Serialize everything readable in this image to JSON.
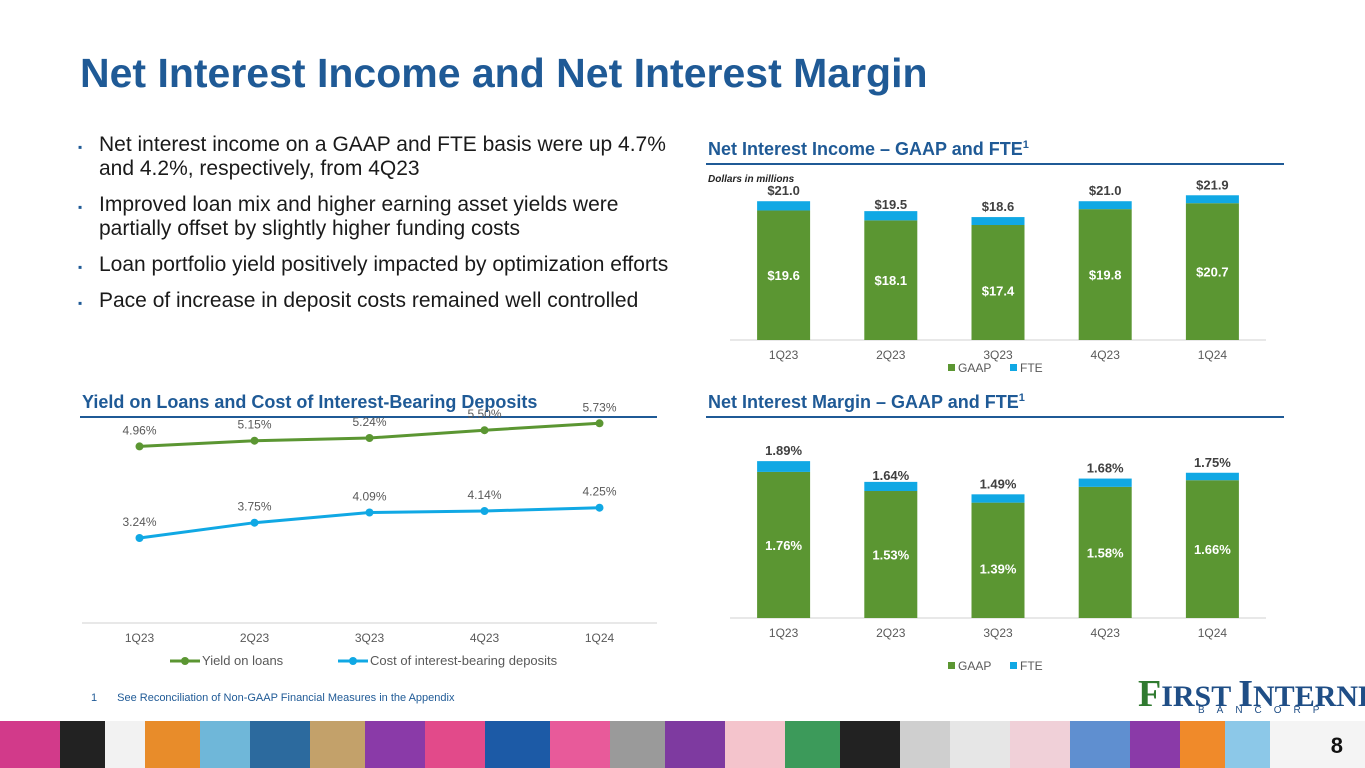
{
  "title": "Net Interest Income and Net Interest Margin",
  "bullets": [
    "Net interest income on a GAAP and FTE basis were up 4.7% and 4.2%, respectively, from 4Q23",
    "Improved loan mix and higher earning asset yields were partially offset by slightly higher funding costs",
    "Loan portfolio yield positively impacted by optimization efforts",
    "Pace of increase in deposit costs remained well controlled"
  ],
  "bullet_marker": "▪",
  "sections": {
    "nii": {
      "title": "Net Interest Income – GAAP and FTE",
      "sup": "1",
      "note": "Dollars in millions"
    },
    "yield": {
      "title": "Yield on Loans and Cost of Interest-Bearing Deposits"
    },
    "nim": {
      "title": "Net Interest Margin – GAAP and FTE",
      "sup": "1"
    }
  },
  "footnote": {
    "number": "1",
    "text": "See Reconciliation of Non-GAAP Financial Measures in the Appendix"
  },
  "logo": {
    "word1": "IRST",
    "word2": "NTERNET",
    "f": "F",
    "i": "I",
    "sub": "BANCORP"
  },
  "page_number": "8",
  "colors": {
    "gaap": "#5b9632",
    "fte": "#10a8e4",
    "title": "#1f5a96",
    "yield_line": "#5b9632",
    "cost_line": "#10a8e4"
  },
  "chart_data": [
    {
      "type": "bar",
      "stacked": true,
      "title": "Net Interest Income – GAAP and FTE",
      "categories": [
        "1Q23",
        "2Q23",
        "3Q23",
        "4Q23",
        "1Q24"
      ],
      "series": [
        {
          "name": "GAAP",
          "values": [
            19.6,
            18.1,
            17.4,
            19.8,
            20.7
          ],
          "labels": [
            "$19.6",
            "$18.1",
            "$17.4",
            "$19.8",
            "$20.7"
          ]
        },
        {
          "name": "FTE",
          "values": [
            1.4,
            1.4,
            1.2,
            1.2,
            1.2
          ]
        }
      ],
      "totals": [
        "$21.0",
        "$19.5",
        "$18.6",
        "$21.0",
        "$21.9"
      ],
      "total_values": [
        21.0,
        19.5,
        18.6,
        21.0,
        21.9
      ],
      "ylim": [
        0,
        23
      ],
      "legend": "bottom"
    },
    {
      "type": "line",
      "title": "Yield on Loans and Cost of Interest-Bearing Deposits",
      "categories": [
        "1Q23",
        "2Q23",
        "3Q23",
        "4Q23",
        "1Q24"
      ],
      "series": [
        {
          "name": "Yield on loans",
          "values": [
            4.96,
            5.15,
            5.24,
            5.5,
            5.73
          ],
          "labels": [
            "4.96%",
            "5.15%",
            "5.24%",
            "5.50%",
            "5.73%"
          ]
        },
        {
          "name": "Cost of interest-bearing deposits",
          "values": [
            3.24,
            3.75,
            4.09,
            4.14,
            4.25
          ],
          "labels": [
            "3.24%",
            "3.75%",
            "4.09%",
            "4.14%",
            "4.25%"
          ]
        }
      ],
      "ylim": [
        0,
        7.5
      ],
      "legend": "bottom"
    },
    {
      "type": "bar",
      "stacked": true,
      "title": "Net Interest Margin – GAAP and FTE",
      "categories": [
        "1Q23",
        "2Q23",
        "3Q23",
        "4Q23",
        "1Q24"
      ],
      "series": [
        {
          "name": "GAAP",
          "values": [
            1.76,
            1.53,
            1.39,
            1.58,
            1.66
          ],
          "labels": [
            "1.76%",
            "1.53%",
            "1.39%",
            "1.58%",
            "1.66%"
          ]
        },
        {
          "name": "FTE",
          "values": [
            0.13,
            0.11,
            0.1,
            0.1,
            0.09
          ]
        }
      ],
      "totals": [
        "1.89%",
        "1.64%",
        "1.49%",
        "1.68%",
        "1.75%"
      ],
      "total_values": [
        1.89,
        1.64,
        1.49,
        1.68,
        1.75
      ],
      "ylim": [
        0,
        2.0
      ],
      "legend": "bottom"
    }
  ]
}
